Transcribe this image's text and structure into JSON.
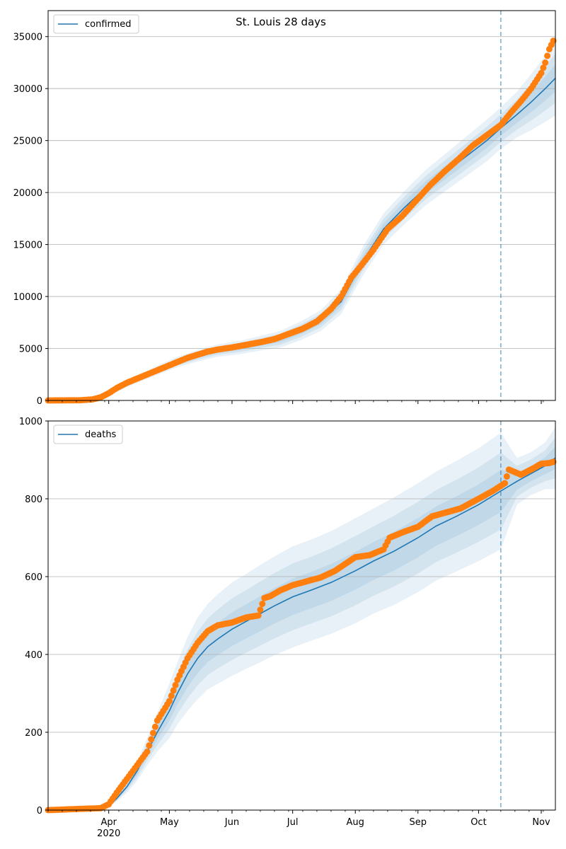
{
  "chart_data": [
    {
      "type": "line",
      "title": "St. Louis 28 days",
      "legend": {
        "entries": [
          "confirmed"
        ],
        "placement": "top-left"
      },
      "grid": "horizontal",
      "xlim": [
        "2020-03-02",
        "2020-11-08"
      ],
      "ylim": [
        0,
        37500
      ],
      "yticks": [
        0,
        5000,
        10000,
        15000,
        20000,
        25000,
        30000,
        35000
      ],
      "yticklabels": [
        "0",
        "5000",
        "10000",
        "15000",
        "20000",
        "25000",
        "30000",
        "35000"
      ],
      "forecast_start": "2020-10-12",
      "model": {
        "name": "confirmed",
        "color": "#1f77b4",
        "x": [
          "2020-03-02",
          "2020-03-20",
          "2020-03-28",
          "2020-04-05",
          "2020-04-15",
          "2020-04-25",
          "2020-05-05",
          "2020-05-15",
          "2020-05-25",
          "2020-06-05",
          "2020-06-15",
          "2020-06-25",
          "2020-07-05",
          "2020-07-15",
          "2020-07-25",
          "2020-08-05",
          "2020-08-15",
          "2020-08-25",
          "2020-09-05",
          "2020-09-15",
          "2020-09-25",
          "2020-10-05",
          "2020-10-12",
          "2020-10-20",
          "2020-10-27",
          "2020-11-03",
          "2020-11-08"
        ],
        "y": [
          0,
          20,
          300,
          1000,
          2000,
          2900,
          3700,
          4300,
          4800,
          5100,
          5500,
          5900,
          6700,
          7700,
          9500,
          13500,
          16500,
          18500,
          20500,
          22000,
          23500,
          25000,
          26200,
          27500,
          28700,
          30000,
          31000
        ],
        "band_offsets": [
          0,
          0,
          0,
          150,
          300,
          450,
          500,
          550,
          600,
          650,
          700,
          800,
          900,
          1000,
          1200,
          1400,
          1500,
          1600,
          1700,
          1800,
          1900,
          2000,
          2000,
          2200,
          2700,
          3200,
          3600
        ]
      },
      "observed": {
        "color": "#ff7f0e",
        "x": [
          "2020-03-02",
          "2020-03-18",
          "2020-03-24",
          "2020-03-28",
          "2020-04-01",
          "2020-04-05",
          "2020-04-10",
          "2020-04-15",
          "2020-04-20",
          "2020-04-25",
          "2020-04-30",
          "2020-05-05",
          "2020-05-10",
          "2020-05-15",
          "2020-05-20",
          "2020-05-25",
          "2020-06-01",
          "2020-06-08",
          "2020-06-15",
          "2020-06-22",
          "2020-06-29",
          "2020-07-06",
          "2020-07-13",
          "2020-07-20",
          "2020-07-25",
          "2020-07-30",
          "2020-08-04",
          "2020-08-10",
          "2020-08-17",
          "2020-08-24",
          "2020-08-31",
          "2020-09-07",
          "2020-09-14",
          "2020-09-21",
          "2020-09-28",
          "2020-10-05",
          "2020-10-12",
          "2020-10-17",
          "2020-10-22",
          "2020-10-27",
          "2020-11-01",
          "2020-11-03",
          "2020-11-05",
          "2020-11-07"
        ],
        "y": [
          0,
          20,
          100,
          300,
          700,
          1200,
          1700,
          2100,
          2500,
          2900,
          3300,
          3700,
          4100,
          4400,
          4700,
          4900,
          5100,
          5350,
          5600,
          5900,
          6400,
          6900,
          7600,
          8800,
          10000,
          11800,
          13000,
          14500,
          16500,
          17700,
          19200,
          20700,
          22000,
          23200,
          24500,
          25500,
          26500,
          27700,
          28800,
          30000,
          31500,
          32500,
          33800,
          34600
        ]
      }
    },
    {
      "type": "line",
      "legend": {
        "entries": [
          "deaths"
        ],
        "placement": "top-left"
      },
      "grid": "horizontal",
      "xlim": [
        "2020-03-02",
        "2020-11-08"
      ],
      "ylim": [
        0,
        1000
      ],
      "yticks": [
        0,
        200,
        400,
        600,
        800,
        1000
      ],
      "yticklabels": [
        "0",
        "200",
        "400",
        "600",
        "800",
        "1000"
      ],
      "xticklabels": [
        "Apr",
        "May",
        "Jun",
        "Jul",
        "Aug",
        "Sep",
        "Oct",
        "Nov"
      ],
      "xticks": [
        "2020-04-01",
        "2020-05-01",
        "2020-06-01",
        "2020-07-01",
        "2020-08-01",
        "2020-09-01",
        "2020-10-01",
        "2020-11-01"
      ],
      "year_label": "2020",
      "forecast_start": "2020-10-12",
      "model": {
        "name": "deaths",
        "color": "#1f77b4",
        "x": [
          "2020-03-02",
          "2020-03-26",
          "2020-04-01",
          "2020-04-05",
          "2020-04-10",
          "2020-04-15",
          "2020-04-20",
          "2020-04-25",
          "2020-05-01",
          "2020-05-05",
          "2020-05-10",
          "2020-05-15",
          "2020-05-20",
          "2020-05-25",
          "2020-06-01",
          "2020-06-08",
          "2020-06-15",
          "2020-06-22",
          "2020-07-01",
          "2020-07-10",
          "2020-07-20",
          "2020-08-01",
          "2020-08-10",
          "2020-08-20",
          "2020-09-01",
          "2020-09-10",
          "2020-09-20",
          "2020-10-01",
          "2020-10-12",
          "2020-10-20",
          "2020-10-27",
          "2020-11-03",
          "2020-11-08"
        ],
        "y": [
          0,
          2,
          10,
          30,
          60,
          100,
          150,
          200,
          255,
          300,
          350,
          390,
          420,
          440,
          465,
          485,
          505,
          525,
          548,
          565,
          585,
          615,
          640,
          665,
          700,
          730,
          755,
          785,
          820,
          845,
          865,
          885,
          905
        ],
        "band_offsets": [
          0,
          0,
          3,
          8,
          15,
          25,
          35,
          50,
          70,
          80,
          95,
          105,
          110,
          115,
          120,
          122,
          125,
          127,
          130,
          130,
          132,
          135,
          135,
          138,
          140,
          140,
          142,
          145,
          150,
          60,
          55,
          60,
          80
        ]
      },
      "observed": {
        "color": "#ff7f0e",
        "x": [
          "2020-03-02",
          "2020-03-28",
          "2020-04-01",
          "2020-04-05",
          "2020-04-10",
          "2020-04-15",
          "2020-04-20",
          "2020-04-25",
          "2020-05-01",
          "2020-05-05",
          "2020-05-10",
          "2020-05-15",
          "2020-05-20",
          "2020-05-25",
          "2020-06-01",
          "2020-06-08",
          "2020-06-14",
          "2020-06-17",
          "2020-06-20",
          "2020-06-25",
          "2020-07-01",
          "2020-07-08",
          "2020-07-15",
          "2020-07-22",
          "2020-08-01",
          "2020-08-08",
          "2020-08-15",
          "2020-08-18",
          "2020-08-25",
          "2020-09-01",
          "2020-09-08",
          "2020-09-15",
          "2020-09-22",
          "2020-10-01",
          "2020-10-08",
          "2020-10-14",
          "2020-10-16",
          "2020-10-22",
          "2020-10-28",
          "2020-11-01",
          "2020-11-05",
          "2020-11-07"
        ],
        "y": [
          0,
          5,
          15,
          45,
          80,
          115,
          150,
          230,
          280,
          335,
          390,
          430,
          460,
          475,
          482,
          495,
          500,
          545,
          550,
          565,
          578,
          588,
          598,
          615,
          650,
          655,
          670,
          700,
          715,
          728,
          755,
          765,
          775,
          800,
          820,
          840,
          875,
          862,
          878,
          890,
          892,
          895
        ]
      }
    }
  ]
}
